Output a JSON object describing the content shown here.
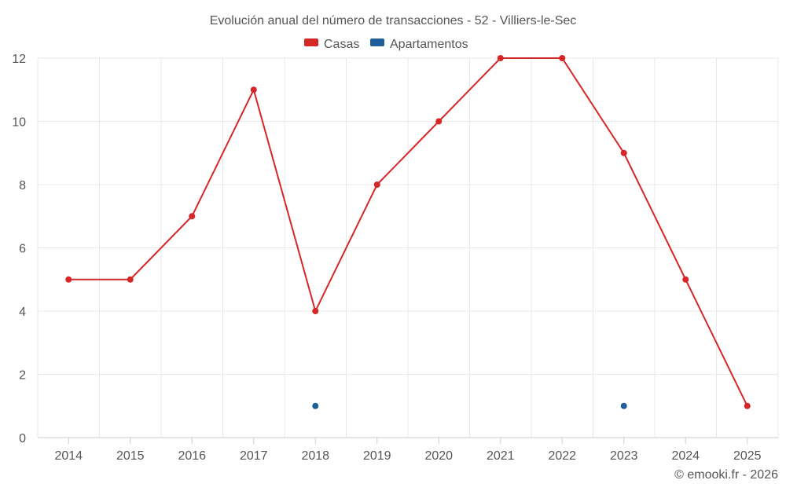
{
  "chart_data": {
    "type": "line",
    "title": "Evolución anual del número de transacciones - 52 - Villiers-le-Sec",
    "categories": [
      "2014",
      "2015",
      "2016",
      "2017",
      "2018",
      "2019",
      "2020",
      "2021",
      "2022",
      "2023",
      "2024",
      "2025"
    ],
    "series": [
      {
        "name": "Casas",
        "color": "#d62728",
        "values": [
          5,
          5,
          7,
          11,
          4,
          8,
          10,
          12,
          12,
          9,
          5,
          1
        ]
      },
      {
        "name": "Apartamentos",
        "color": "#1f5f99",
        "values": [
          null,
          null,
          null,
          null,
          1,
          null,
          null,
          null,
          null,
          1,
          null,
          null
        ]
      }
    ],
    "ylim": [
      0,
      12
    ],
    "yticks": [
      "0",
      "2",
      "4",
      "6",
      "8",
      "10",
      "12"
    ],
    "legend_position": "top-center",
    "grid": true
  },
  "credit": "© emooki.fr - 2026"
}
